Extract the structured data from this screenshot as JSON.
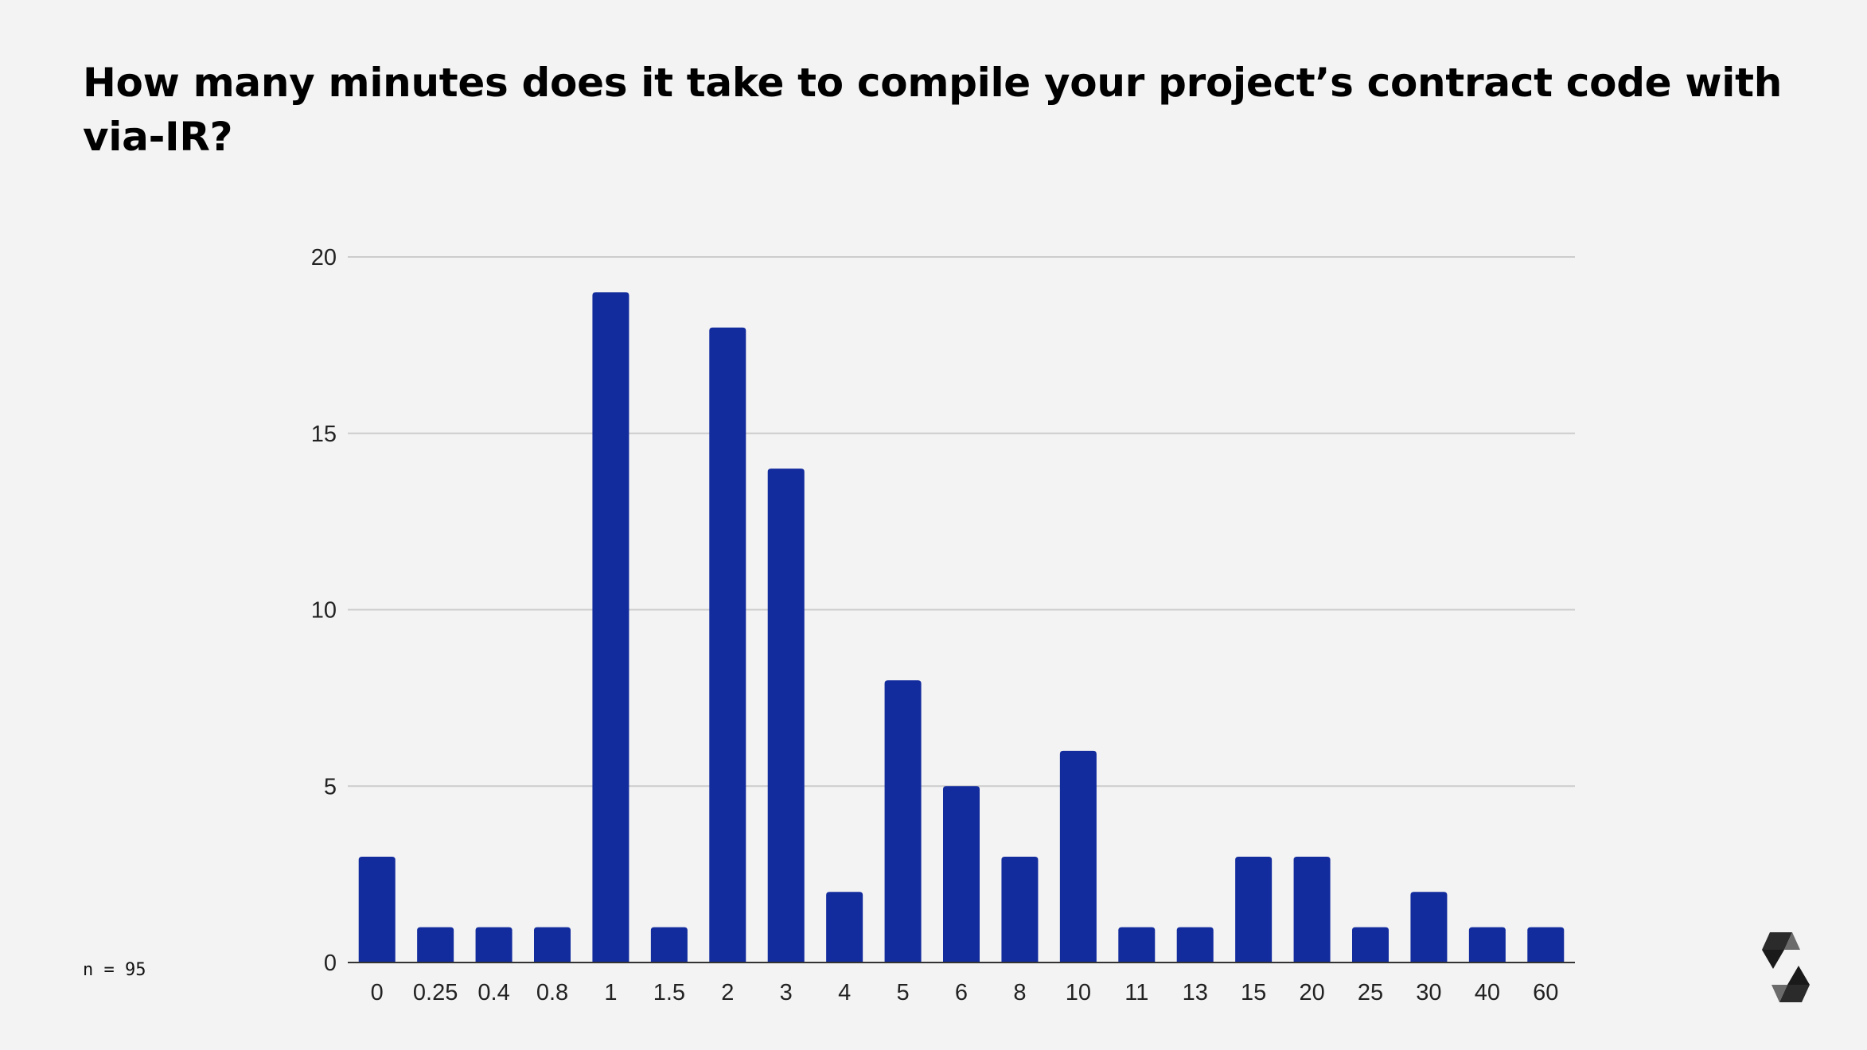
{
  "title": "How many minutes does it take to compile your project’s contract code with via-IR?",
  "footnote": "n = 95",
  "colors": {
    "bar": "#122b9d",
    "grid": "#cccccc",
    "axis": "#333333",
    "background": "#f3f3f3"
  },
  "chart_data": {
    "type": "bar",
    "title": "How many minutes does it take to compile your project’s contract code with via-IR?",
    "xlabel": "",
    "ylabel": "",
    "categories": [
      "0",
      "0.25",
      "0.4",
      "0.8",
      "1",
      "1.5",
      "2",
      "3",
      "4",
      "5",
      "6",
      "8",
      "10",
      "11",
      "13",
      "15",
      "20",
      "25",
      "30",
      "40",
      "60"
    ],
    "values": [
      3,
      1,
      1,
      1,
      19,
      1,
      18,
      14,
      2,
      8,
      5,
      3,
      6,
      1,
      1,
      3,
      3,
      1,
      2,
      1,
      1
    ],
    "ylim": [
      0,
      20
    ],
    "yticks": [
      0,
      5,
      10,
      15,
      20
    ],
    "grid": true,
    "legend": "none"
  }
}
